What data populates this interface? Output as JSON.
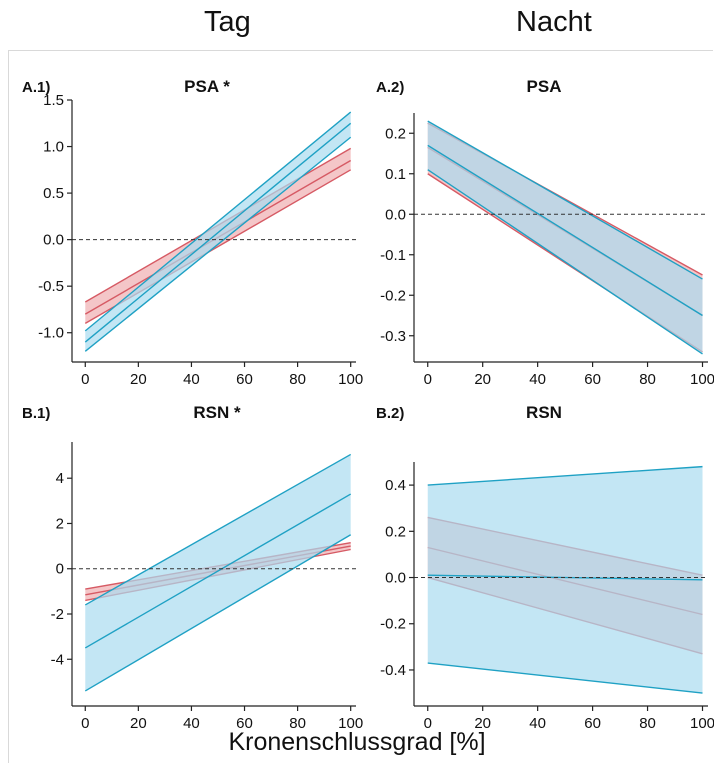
{
  "figure": {
    "column_titles": [
      "Tag",
      "Nacht"
    ],
    "xlabel": "Kronenschlussgrad [%]",
    "colors": {
      "blue_fill": "#a9dcef",
      "blue_line": "#1fa1c4",
      "red_fill": "#f0b3b6",
      "red_line": "#d65a64",
      "overlap_fill": "#9eb6c8",
      "overlap_line": "#6e8aa5"
    }
  },
  "chart_data": [
    {
      "id": "A1",
      "tag": "A.1)",
      "title": "PSA *",
      "type": "line",
      "x": [
        0,
        100
      ],
      "xticks": [
        0,
        20,
        40,
        60,
        80,
        100
      ],
      "xlim": [
        -5,
        102
      ],
      "ylim": [
        -1.25,
        1.5
      ],
      "yticks": [
        -1.0,
        -0.5,
        0.0,
        0.5,
        1.0,
        1.5
      ],
      "ytick_labels": [
        "-1.0",
        "-0.5",
        "0.0",
        "0.5",
        "1.0",
        "1.5"
      ],
      "reference_line": 0,
      "series": [
        {
          "color": "red",
          "mean": [
            -0.8,
            0.85
          ],
          "lower": [
            -0.9,
            0.75
          ],
          "upper": [
            -0.67,
            0.98
          ]
        },
        {
          "color": "blue",
          "mean": [
            -1.1,
            1.25
          ],
          "lower": [
            -1.2,
            1.1
          ],
          "upper": [
            -0.98,
            1.37
          ]
        }
      ]
    },
    {
      "id": "A2",
      "tag": "A.2)",
      "title": "PSA",
      "type": "line",
      "x": [
        0,
        100
      ],
      "xticks": [
        0,
        20,
        40,
        60,
        80,
        100
      ],
      "xlim": [
        -5,
        102
      ],
      "ylim": [
        -0.35,
        0.25
      ],
      "yticks": [
        -0.3,
        -0.2,
        -0.1,
        0.0,
        0.1,
        0.2
      ],
      "ytick_labels": [
        "-0.3",
        "-0.2",
        "-0.1",
        "0.0",
        "0.1",
        "0.2"
      ],
      "reference_line": 0,
      "series": [
        {
          "color": "red",
          "mean": [
            0.165,
            -0.25
          ],
          "lower": [
            0.1,
            -0.34
          ],
          "upper": [
            0.225,
            -0.15
          ]
        },
        {
          "color": "blue",
          "mean": [
            0.17,
            -0.25
          ],
          "lower": [
            0.11,
            -0.345
          ],
          "upper": [
            0.23,
            -0.16
          ]
        }
      ]
    },
    {
      "id": "B1",
      "tag": "B.1)",
      "title": "RSN *",
      "type": "line",
      "x": [
        0,
        100
      ],
      "xticks": [
        0,
        20,
        40,
        60,
        80,
        100
      ],
      "xlim": [
        -5,
        102
      ],
      "ylim": [
        -5.8,
        5.6
      ],
      "yticks": [
        -4,
        -2,
        0,
        2,
        4
      ],
      "ytick_labels": [
        "-4",
        "-2",
        "0",
        "2",
        "4"
      ],
      "reference_line": 0,
      "series": [
        {
          "color": "red",
          "mean": [
            -1.15,
            1.0
          ],
          "lower": [
            -1.4,
            0.85
          ],
          "upper": [
            -0.9,
            1.15
          ]
        },
        {
          "color": "blue",
          "mean": [
            -3.5,
            3.3
          ],
          "lower": [
            -5.4,
            1.5
          ],
          "upper": [
            -1.6,
            5.05
          ]
        }
      ]
    },
    {
      "id": "B2",
      "tag": "B.2)",
      "title": "RSN",
      "type": "line",
      "x": [
        0,
        100
      ],
      "xticks": [
        0,
        20,
        40,
        60,
        80,
        100
      ],
      "xlim": [
        -5,
        102
      ],
      "ylim": [
        -0.53,
        0.5
      ],
      "yticks": [
        -0.4,
        -0.2,
        0.0,
        0.2,
        0.4
      ],
      "ytick_labels": [
        "-0.4",
        "-0.2",
        "0.0",
        "0.2",
        "0.4"
      ],
      "reference_line": 0,
      "series": [
        {
          "color": "red",
          "mean": [
            0.13,
            -0.16
          ],
          "lower": [
            0.0,
            -0.33
          ],
          "upper": [
            0.26,
            0.01
          ]
        },
        {
          "color": "blue",
          "mean": [
            0.01,
            -0.01
          ],
          "lower": [
            -0.37,
            -0.5
          ],
          "upper": [
            0.4,
            0.48
          ]
        }
      ]
    }
  ]
}
